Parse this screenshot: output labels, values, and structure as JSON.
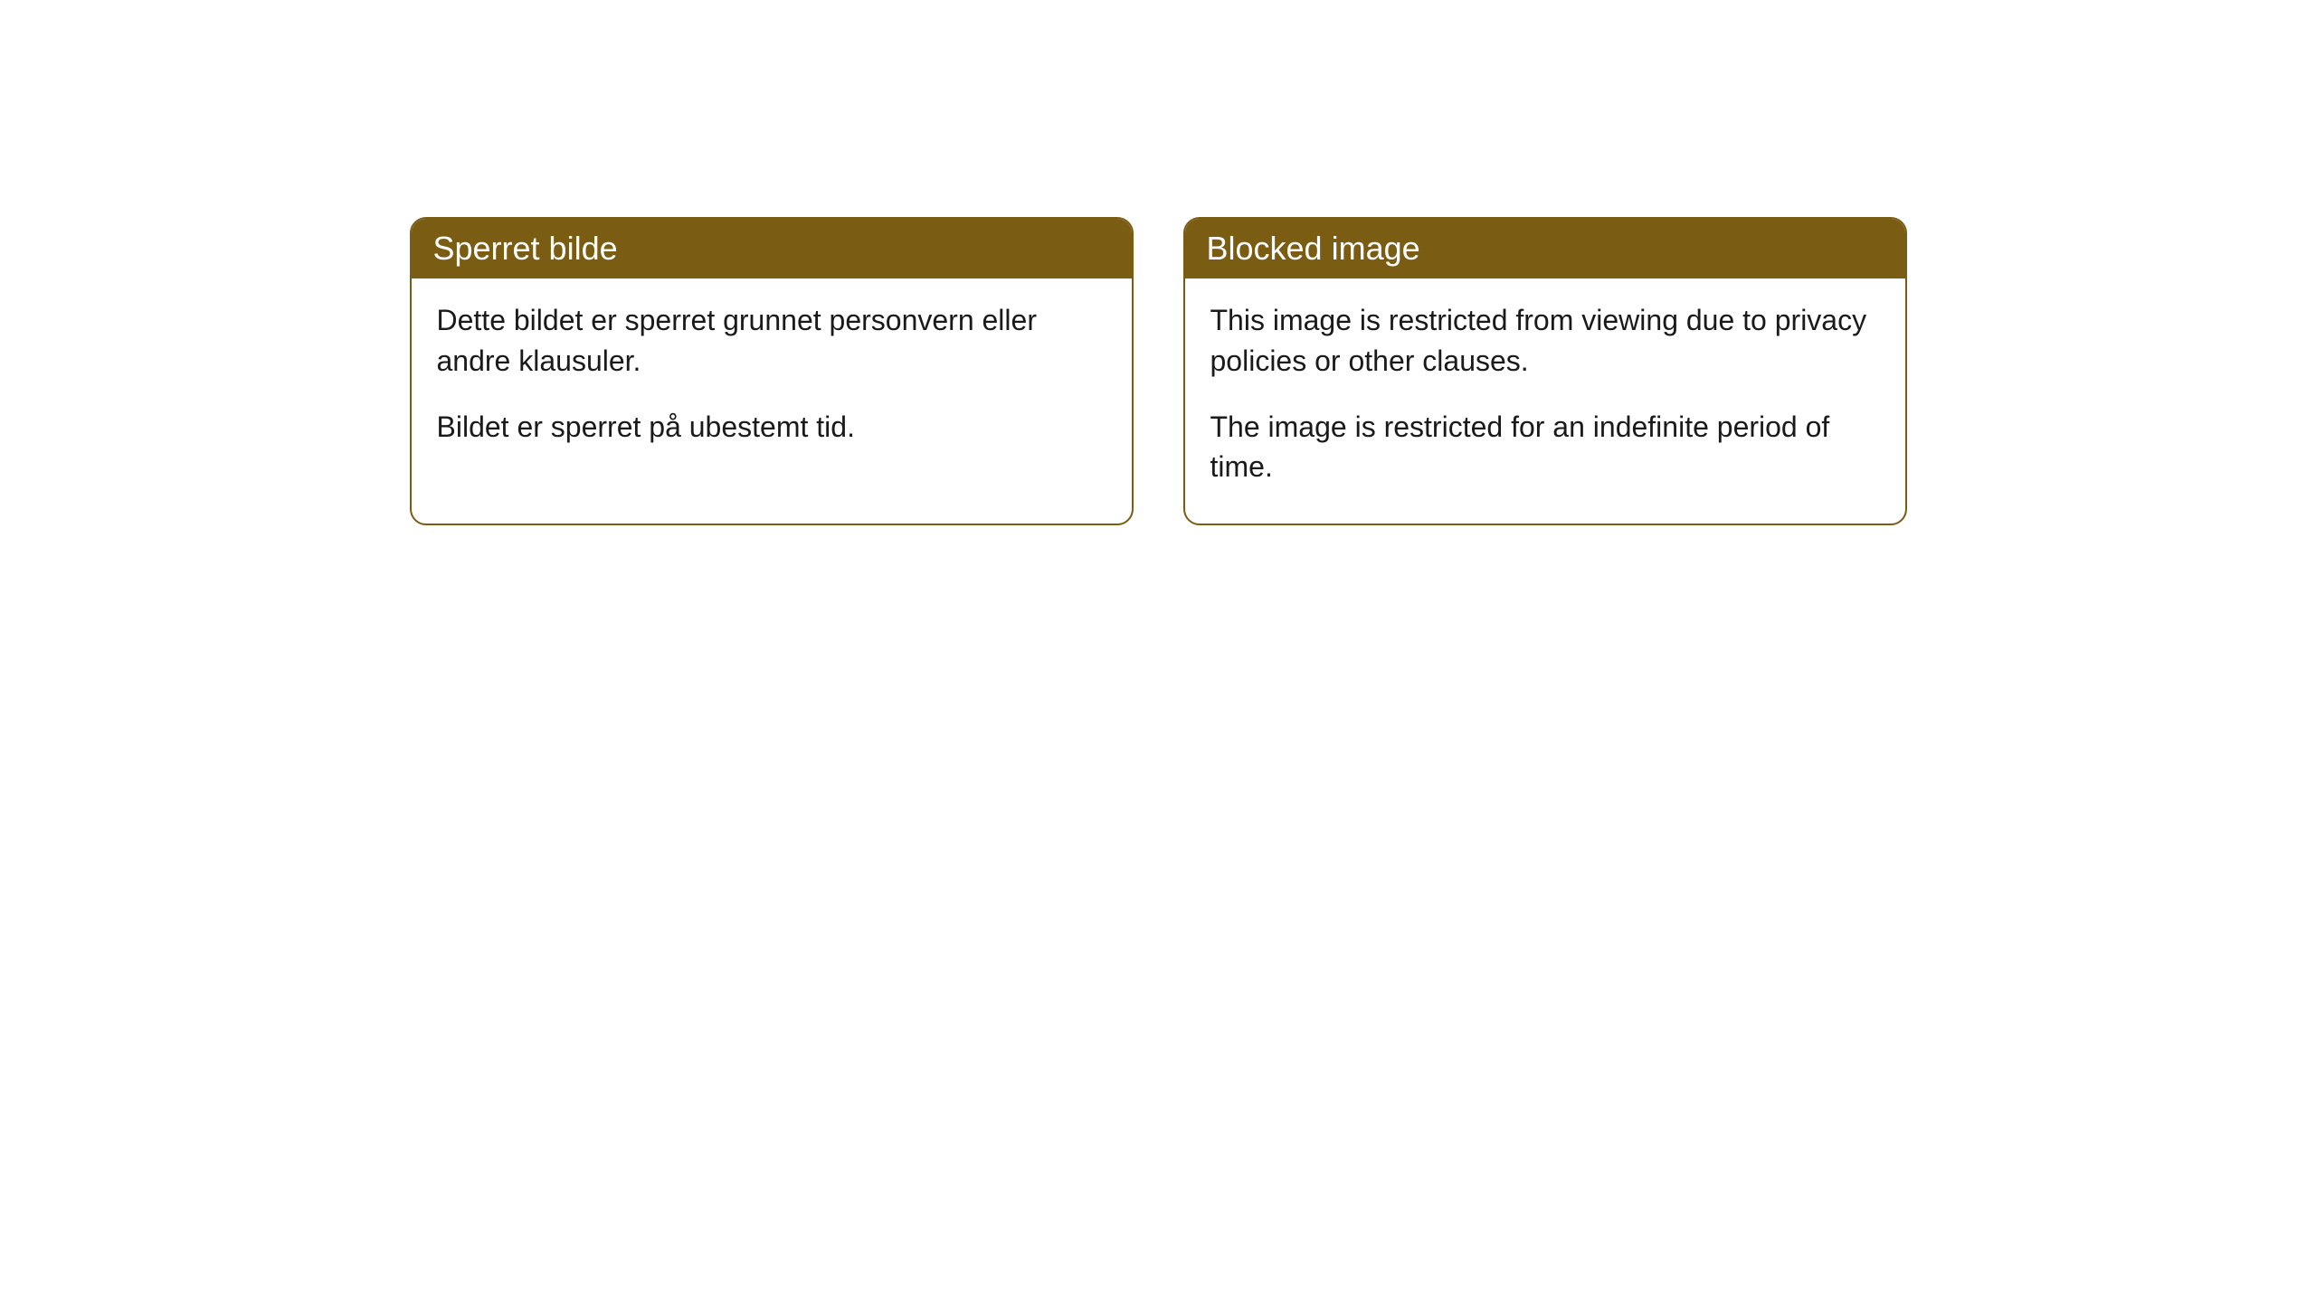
{
  "cards": [
    {
      "title": "Sperret bilde",
      "paragraph1": "Dette bildet er sperret grunnet personvern eller andre klausuler.",
      "paragraph2": "Bildet er sperret på ubestemt tid."
    },
    {
      "title": "Blocked image",
      "paragraph1": "This image is restricted from viewing due to privacy policies or other clauses.",
      "paragraph2": "The image is restricted for an indefinite period of time."
    }
  ],
  "styling": {
    "header_bg_color": "#7a5c13",
    "header_text_color": "#ffffff",
    "border_color": "#7a5c13",
    "body_bg_color": "#ffffff",
    "body_text_color": "#1a1a1a",
    "border_radius": 18,
    "header_fontsize": 36,
    "body_fontsize": 32
  }
}
